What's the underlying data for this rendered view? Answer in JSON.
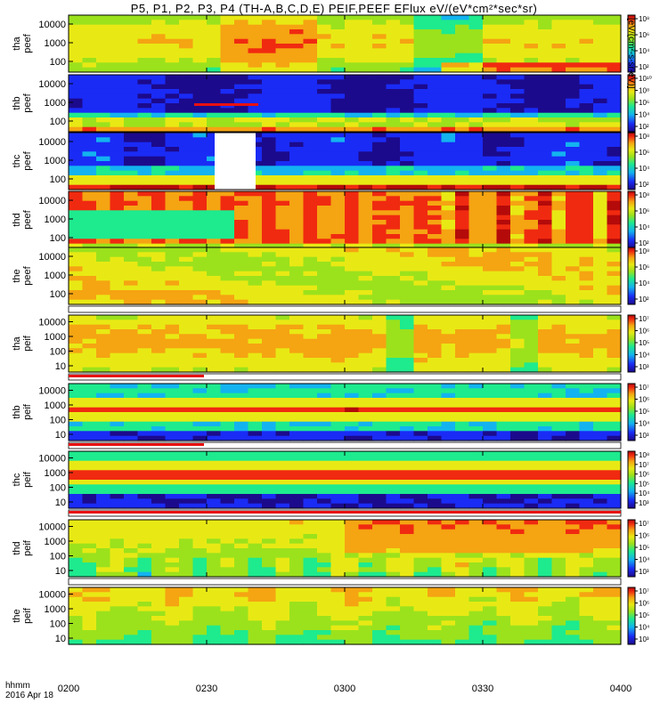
{
  "title": "P5, P1, P2, P3, P4 (TH-A,B,C,D,E) PEIF,PEEF EFlux eV/(eV*cm²*sec*sr)",
  "xaxis": {
    "corner_label_1": "hhmm",
    "corner_label_2": "2016 Apr 18",
    "ticks": [
      {
        "label": "0200",
        "minute": 0
      },
      {
        "label": "0230",
        "minute": 30
      },
      {
        "label": "0300",
        "minute": 60
      },
      {
        "label": "0330",
        "minute": 90
      },
      {
        "label": "0400",
        "minute": 120
      }
    ],
    "range_minutes": [
      0,
      120
    ]
  },
  "colorbar_label": "[eV/(cm²-s-sr-eV)]",
  "panel_labels": [
    [
      "tha",
      "peef"
    ],
    [
      "thb",
      "peef"
    ],
    [
      "thc",
      "peef"
    ],
    [
      "thd",
      "peef"
    ],
    [
      "the",
      "peef"
    ],
    [
      "tha",
      "peif"
    ],
    [
      "thb",
      "peif"
    ],
    [
      "thc",
      "peif"
    ],
    [
      "thd",
      "peif"
    ],
    [
      "the",
      "peif"
    ]
  ],
  "chart_data": {
    "type": "heatmap",
    "x_unit": "minutes after 0200 UT, 2016 Apr 18",
    "y_unit": "energy eV (log scale)",
    "panels": [
      {
        "probe": "tha",
        "species": "peef",
        "yticks": [
          "100",
          "1000",
          "10000"
        ],
        "colorbar_ticks": [
          "10²",
          "10⁴",
          "10⁶",
          "10⁸"
        ],
        "gap_after": false
      },
      {
        "probe": "thb",
        "species": "peef",
        "yticks": [
          "100",
          "1000",
          "10000"
        ],
        "colorbar_ticks": [
          "10²",
          "10⁴",
          "10⁶",
          "10⁸",
          "10¹⁰"
        ],
        "gap_after": false
      },
      {
        "probe": "thc",
        "species": "peef",
        "yticks": [
          "100",
          "1000",
          "10000"
        ],
        "colorbar_ticks": [
          "10²",
          "10⁴",
          "10⁶",
          "10⁸"
        ],
        "gap_after": false
      },
      {
        "probe": "thd",
        "species": "peef",
        "yticks": [
          "100",
          "1000",
          "10000"
        ],
        "colorbar_ticks": [
          "10²",
          "10⁴",
          "10⁶",
          "10⁸"
        ],
        "gap_after": false
      },
      {
        "probe": "the",
        "species": "peef",
        "yticks": [
          "100",
          "1000",
          "10000"
        ],
        "colorbar_ticks": [
          "10²",
          "10⁴",
          "10⁶",
          "10⁸"
        ],
        "gap_after": true
      },
      {
        "probe": "tha",
        "species": "peif",
        "yticks": [
          "10",
          "100",
          "1000",
          "10000"
        ],
        "colorbar_ticks": [
          "10³",
          "10⁴",
          "10⁵",
          "10⁶",
          "10⁷"
        ],
        "gap_after": true
      },
      {
        "probe": "thb",
        "species": "peif",
        "yticks": [
          "10",
          "100",
          "1000",
          "10000"
        ],
        "colorbar_ticks": [
          "10³",
          "10⁴",
          "10⁵",
          "10⁶",
          "10⁷"
        ],
        "gap_after": true
      },
      {
        "probe": "thc",
        "species": "peif",
        "yticks": [
          "10",
          "100",
          "1000",
          "10000"
        ],
        "colorbar_ticks": [
          "10³",
          "10⁴",
          "10⁵",
          "10⁶",
          "10⁷",
          "10⁸"
        ],
        "gap_after": true
      },
      {
        "probe": "thd",
        "species": "peif",
        "yticks": [
          "10",
          "100",
          "1000",
          "10000"
        ],
        "colorbar_ticks": [
          "10³",
          "10⁴",
          "10⁵",
          "10⁶",
          "10⁷"
        ],
        "gap_after": true
      },
      {
        "probe": "the",
        "species": "peif",
        "yticks": [
          "10",
          "100",
          "1000",
          "10000"
        ],
        "colorbar_ticks": [
          "10³",
          "10⁴",
          "10⁵",
          "10⁶",
          "10⁷"
        ],
        "gap_after": false
      }
    ],
    "colormap": [
      "#1c0a8c",
      "#1a2bf5",
      "#13b3f0",
      "#1eea8e",
      "#9be21c",
      "#e8e914",
      "#f5a412",
      "#f02a10",
      "#b40a0a"
    ]
  }
}
